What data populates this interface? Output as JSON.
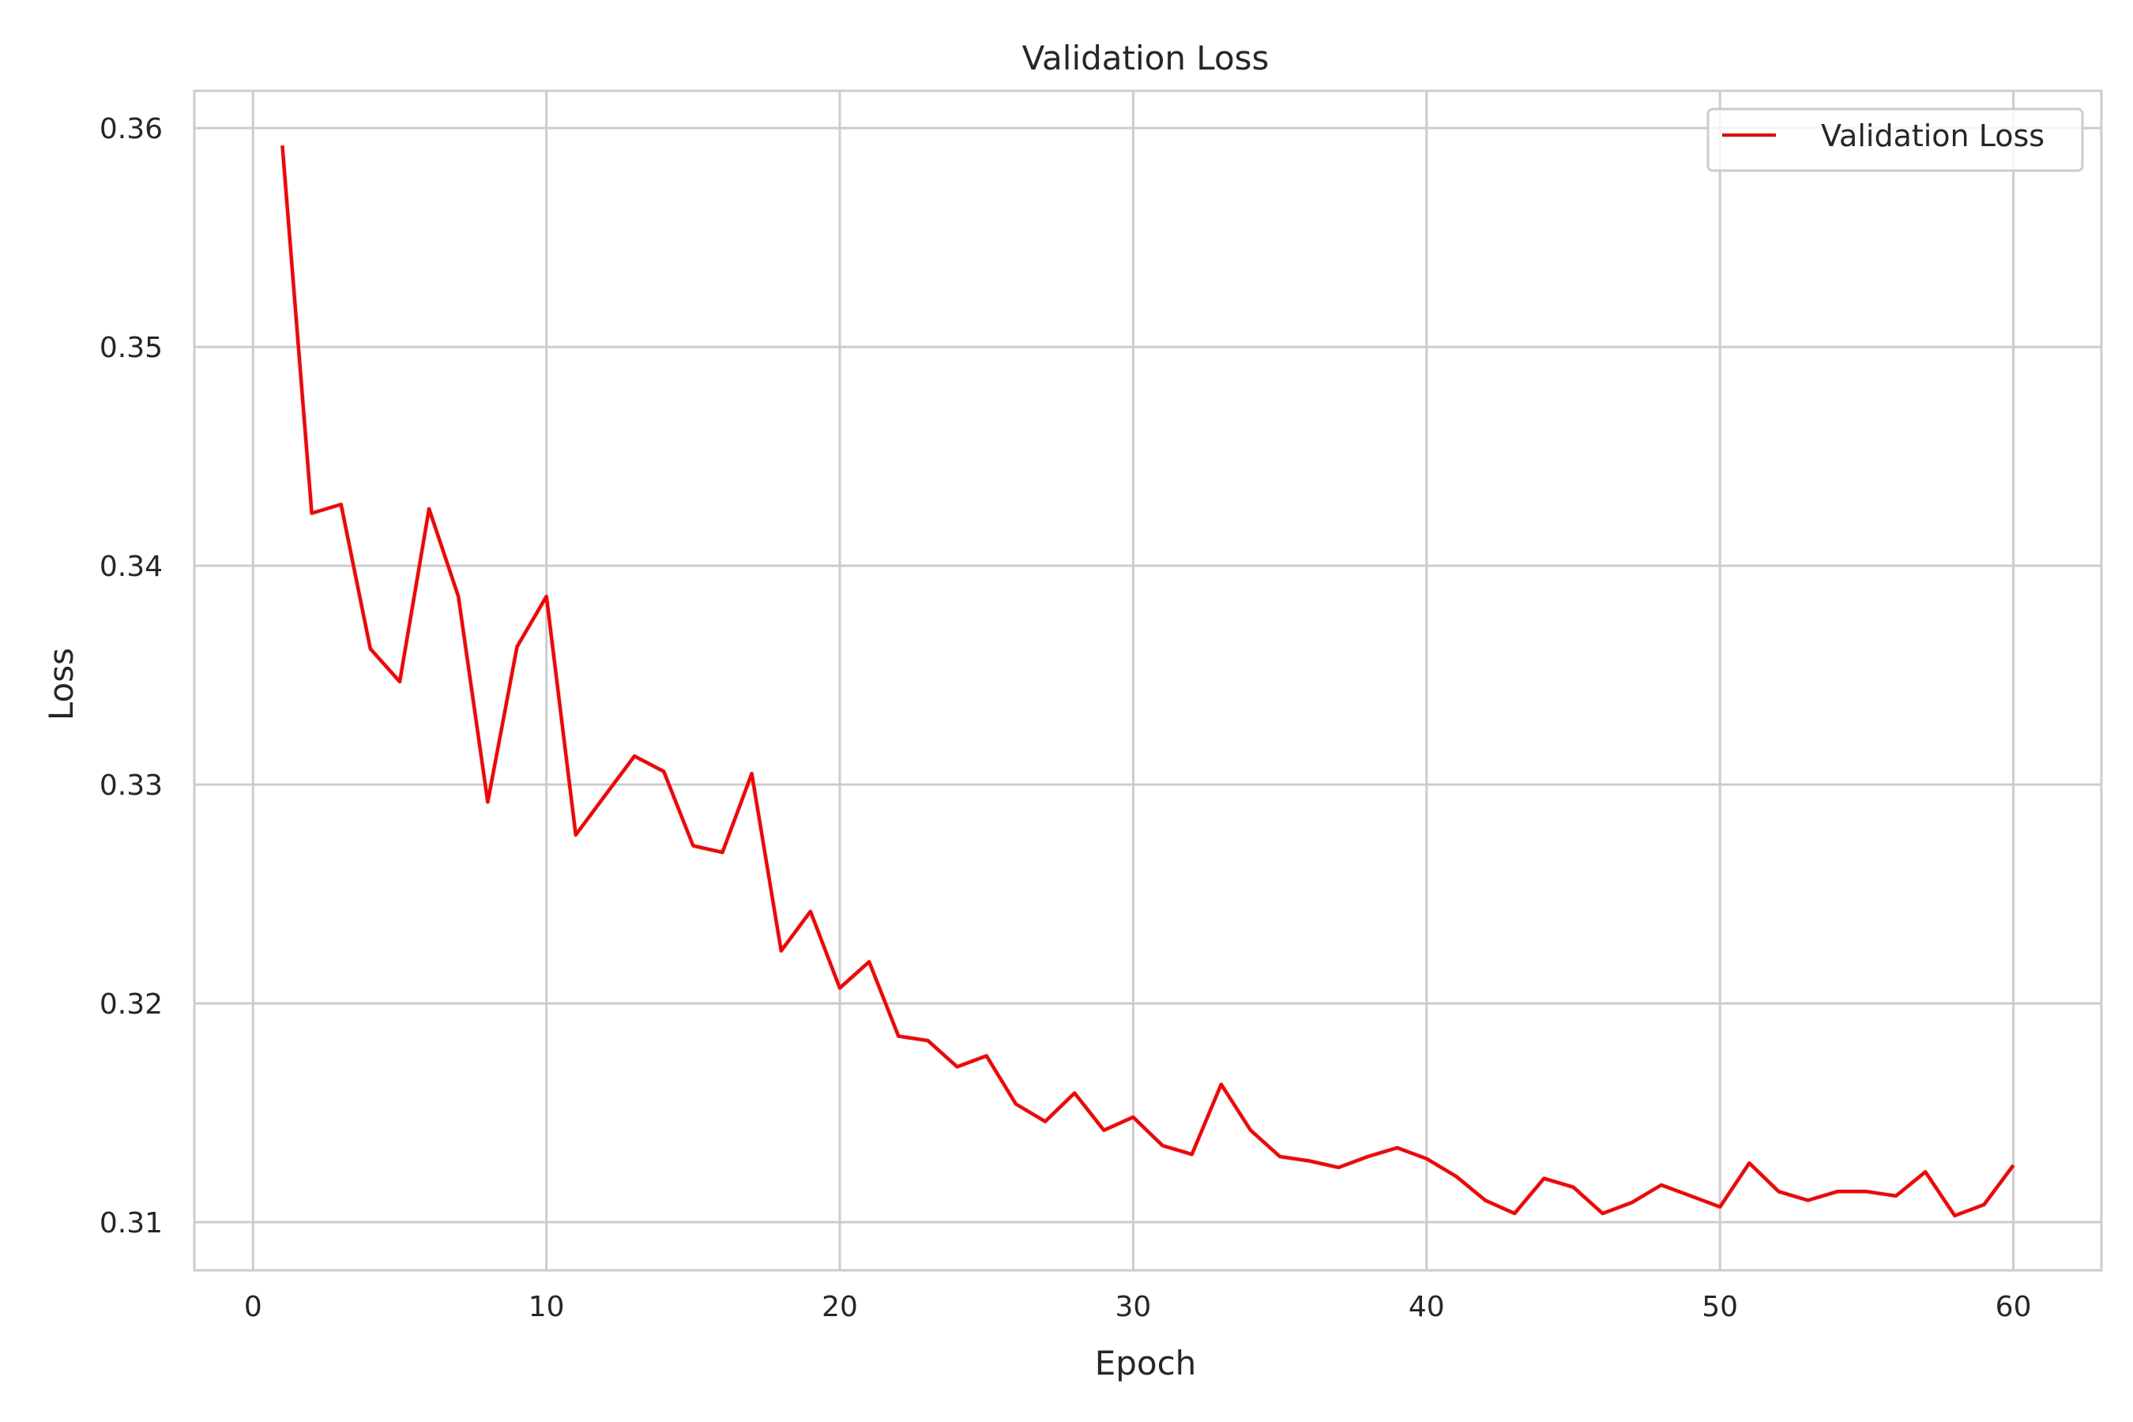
{
  "chart_data": {
    "type": "line",
    "title": "Validation Loss",
    "xlabel": "Epoch",
    "ylabel": "Loss",
    "xlim": [
      -2,
      63
    ],
    "ylim": [
      0.3078,
      0.3617
    ],
    "xticks": [
      0,
      10,
      20,
      30,
      40,
      50,
      60
    ],
    "yticks": [
      0.31,
      0.32,
      0.33,
      0.34,
      0.35,
      0.36
    ],
    "xtick_labels": [
      "0",
      "10",
      "20",
      "30",
      "40",
      "50",
      "60"
    ],
    "ytick_labels": [
      "0.31",
      "0.32",
      "0.33",
      "0.34",
      "0.35",
      "0.36"
    ],
    "grid": true,
    "legend_position": "top-right",
    "series": [
      {
        "name": "Validation Loss",
        "color": "#ff0000",
        "x": [
          1,
          2,
          3,
          4,
          5,
          6,
          7,
          8,
          9,
          10,
          11,
          12,
          13,
          14,
          15,
          16,
          17,
          18,
          19,
          20,
          21,
          22,
          23,
          24,
          25,
          26,
          27,
          28,
          29,
          30,
          31,
          32,
          33,
          34,
          35,
          36,
          37,
          38,
          39,
          40,
          41,
          42,
          43,
          44,
          45,
          46,
          47,
          48,
          49,
          50,
          51,
          52,
          53,
          54,
          55,
          56,
          57,
          58,
          59,
          60
        ],
        "y": [
          0.3592,
          0.3424,
          0.3428,
          0.3362,
          0.3347,
          0.3426,
          0.3386,
          0.3292,
          0.3363,
          0.3386,
          0.3277,
          0.3295,
          0.3313,
          0.3306,
          0.3272,
          0.3269,
          0.3305,
          0.3224,
          0.3242,
          0.3207,
          0.3219,
          0.3185,
          0.3183,
          0.3171,
          0.3176,
          0.3154,
          0.3146,
          0.3159,
          0.3142,
          0.3148,
          0.3135,
          0.3131,
          0.3163,
          0.3142,
          0.313,
          0.3128,
          0.3125,
          0.313,
          0.3134,
          0.3129,
          0.3121,
          0.311,
          0.3104,
          0.312,
          0.3116,
          0.3104,
          0.3109,
          0.3117,
          0.3112,
          0.3107,
          0.3127,
          0.3114,
          0.311,
          0.3114,
          0.3114,
          0.3112,
          0.3123,
          0.3103,
          0.3108,
          0.3126
        ]
      }
    ]
  }
}
